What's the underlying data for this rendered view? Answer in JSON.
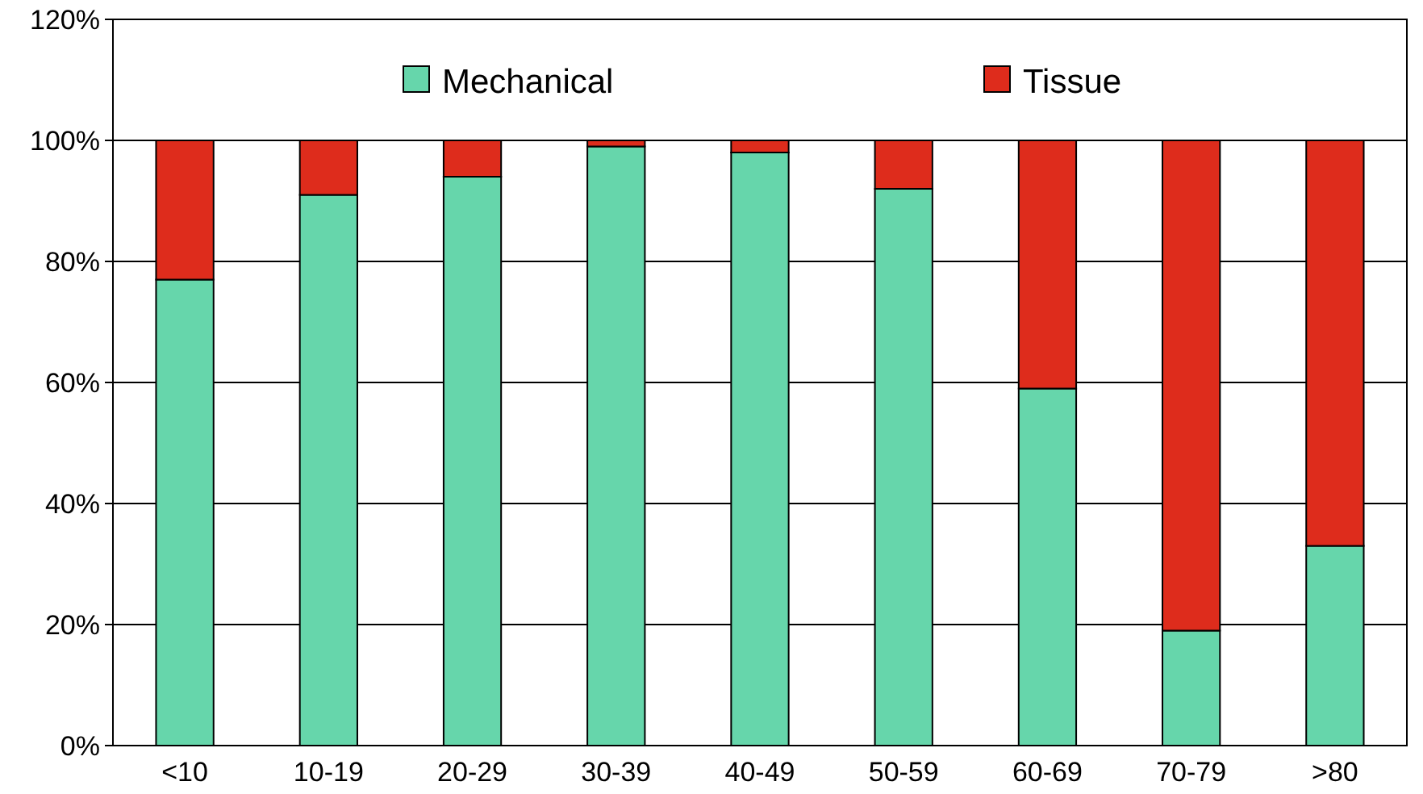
{
  "chart_data": {
    "type": "bar",
    "stacked": true,
    "categories": [
      "<10",
      "10-19",
      "20-29",
      "30-39",
      "40-49",
      "50-59",
      "60-69",
      "70-79",
      ">80"
    ],
    "series": [
      {
        "name": "Mechanical",
        "color": "#66d6ab",
        "values": [
          77,
          91,
          94,
          99,
          98,
          92,
          59,
          19,
          33
        ]
      },
      {
        "name": "Tissue",
        "color": "#de2c1c",
        "values": [
          23,
          9,
          6,
          1,
          2,
          8,
          41,
          81,
          67
        ]
      }
    ],
    "ylim": [
      0,
      120
    ],
    "yticks": [
      {
        "value": 0,
        "label": "0%"
      },
      {
        "value": 20,
        "label": "20%"
      },
      {
        "value": 40,
        "label": "40%"
      },
      {
        "value": 60,
        "label": "60%"
      },
      {
        "value": 80,
        "label": "80%"
      },
      {
        "value": 100,
        "label": "100%"
      },
      {
        "value": 120,
        "label": "120%"
      }
    ],
    "grid": "y",
    "legend": "top"
  }
}
